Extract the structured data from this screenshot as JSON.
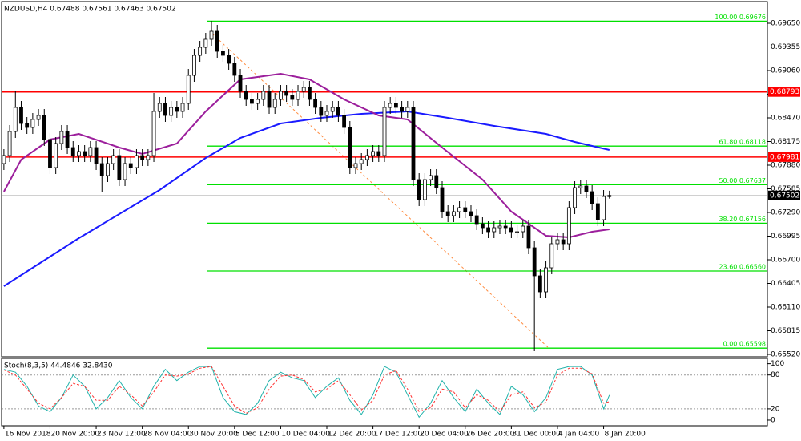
{
  "chart_data": [
    {
      "type": "candlestick",
      "title": "NZDUSD,H4  0.67488 0.67561 0.67463 0.67502",
      "xlim": [
        -0.4,
        132.4
      ],
      "ylim": [
        0.6549,
        0.6991
      ],
      "xticks": [
        {
          "value": 0,
          "label": "16 Nov 2018"
        },
        {
          "value": 8,
          "label": "20 Nov 20:00"
        },
        {
          "value": 16,
          "label": "23 Nov 12:00"
        },
        {
          "value": 24,
          "label": "28 Nov 04:00"
        },
        {
          "value": 32,
          "label": "30 Nov 20:00"
        },
        {
          "value": 40,
          "label": "5 Dec 12:00"
        },
        {
          "value": 48,
          "label": "10 Dec 04:00"
        },
        {
          "value": 56,
          "label": "12 Dec 20:00"
        },
        {
          "value": 64,
          "label": "17 Dec 12:00"
        },
        {
          "value": 72,
          "label": "20 Dec 04:00"
        },
        {
          "value": 80,
          "label": "26 Dec 20:00"
        },
        {
          "value": 88,
          "label": "31 Dec 00:00"
        },
        {
          "value": 96,
          "label": "4 Jan 04:00"
        },
        {
          "value": 104,
          "label": "8 Jan 20:00"
        }
      ],
      "yticks": [
        {
          "value": 0.6965,
          "label": "0.69650"
        },
        {
          "value": 0.69355,
          "label": "0.69355"
        },
        {
          "value": 0.6906,
          "label": "0.69060"
        },
        {
          "value": 0.68765,
          "label": "0.68765"
        },
        {
          "value": 0.6847,
          "label": "0.68470"
        },
        {
          "value": 0.68175,
          "label": "0.68175"
        },
        {
          "value": 0.6788,
          "label": "0.67880"
        },
        {
          "value": 0.67585,
          "label": "0.67585"
        },
        {
          "value": 0.6729,
          "label": "0.67290"
        },
        {
          "value": 0.66995,
          "label": "0.66995"
        },
        {
          "value": 0.667,
          "label": "0.66700"
        },
        {
          "value": 0.66405,
          "label": "0.66405"
        },
        {
          "value": 0.6611,
          "label": "0.66110"
        },
        {
          "value": 0.65815,
          "label": "0.65815"
        },
        {
          "value": 0.6552,
          "label": "0.65520"
        }
      ],
      "grid": false,
      "up_color": "#ffffff",
      "down_color": "#000000",
      "candles": [
        [
          0.679,
          0.6808,
          0.6782,
          0.68
        ],
        [
          0.68,
          0.6838,
          0.6792,
          0.683
        ],
        [
          0.683,
          0.6881,
          0.6822,
          0.686
        ],
        [
          0.686,
          0.6868,
          0.6832,
          0.684
        ],
        [
          0.684,
          0.6848,
          0.6827,
          0.6835
        ],
        [
          0.6835,
          0.6853,
          0.6827,
          0.6845
        ],
        [
          0.6845,
          0.6858,
          0.6837,
          0.685
        ],
        [
          0.685,
          0.6858,
          0.6812,
          0.682
        ],
        [
          0.682,
          0.6828,
          0.6777,
          0.6785
        ],
        [
          0.6785,
          0.6823,
          0.6777,
          0.6815
        ],
        [
          0.6815,
          0.6838,
          0.6807,
          0.683
        ],
        [
          0.683,
          0.6838,
          0.6802,
          0.681
        ],
        [
          0.681,
          0.6818,
          0.6792,
          0.68
        ],
        [
          0.68,
          0.6813,
          0.6792,
          0.6805
        ],
        [
          0.6805,
          0.6813,
          0.6792,
          0.68
        ],
        [
          0.68,
          0.6818,
          0.6792,
          0.681
        ],
        [
          0.681,
          0.6818,
          0.6782,
          0.679
        ],
        [
          0.679,
          0.6798,
          0.6755,
          0.6775
        ],
        [
          0.6775,
          0.6798,
          0.6767,
          0.679
        ],
        [
          0.679,
          0.6808,
          0.6782,
          0.68
        ],
        [
          0.68,
          0.6808,
          0.6762,
          0.677
        ],
        [
          0.677,
          0.6798,
          0.6762,
          0.679
        ],
        [
          0.679,
          0.6798,
          0.6777,
          0.6785
        ],
        [
          0.6785,
          0.6808,
          0.6777,
          0.68
        ],
        [
          0.68,
          0.6808,
          0.6787,
          0.6795
        ],
        [
          0.6795,
          0.6808,
          0.6787,
          0.68
        ],
        [
          0.68,
          0.6878,
          0.6792,
          0.6855
        ],
        [
          0.6855,
          0.6873,
          0.6847,
          0.6865
        ],
        [
          0.6865,
          0.6873,
          0.6842,
          0.685
        ],
        [
          0.685,
          0.6868,
          0.6842,
          0.686
        ],
        [
          0.686,
          0.6868,
          0.6847,
          0.6855
        ],
        [
          0.6855,
          0.6873,
          0.6847,
          0.6865
        ],
        [
          0.6865,
          0.6908,
          0.6857,
          0.69
        ],
        [
          0.69,
          0.6933,
          0.6892,
          0.6925
        ],
        [
          0.6925,
          0.6943,
          0.6917,
          0.6935
        ],
        [
          0.6935,
          0.6953,
          0.6927,
          0.6945
        ],
        [
          0.6945,
          0.6968,
          0.6937,
          0.6955
        ],
        [
          0.6955,
          0.6963,
          0.6922,
          0.693
        ],
        [
          0.693,
          0.6938,
          0.6917,
          0.6925
        ],
        [
          0.6925,
          0.6933,
          0.6907,
          0.6915
        ],
        [
          0.6915,
          0.6923,
          0.6892,
          0.69
        ],
        [
          0.69,
          0.6908,
          0.6872,
          0.688
        ],
        [
          0.688,
          0.6888,
          0.6862,
          0.687
        ],
        [
          0.687,
          0.6878,
          0.6857,
          0.6865
        ],
        [
          0.6865,
          0.6878,
          0.6857,
          0.687
        ],
        [
          0.687,
          0.6888,
          0.6862,
          0.688
        ],
        [
          0.688,
          0.6888,
          0.6852,
          0.686
        ],
        [
          0.686,
          0.6878,
          0.6852,
          0.687
        ],
        [
          0.687,
          0.6888,
          0.6862,
          0.688
        ],
        [
          0.688,
          0.6888,
          0.6867,
          0.6875
        ],
        [
          0.6875,
          0.6883,
          0.6862,
          0.687
        ],
        [
          0.687,
          0.6888,
          0.6862,
          0.688
        ],
        [
          0.688,
          0.6893,
          0.6872,
          0.6885
        ],
        [
          0.6885,
          0.6893,
          0.6862,
          0.687
        ],
        [
          0.687,
          0.6878,
          0.6852,
          0.686
        ],
        [
          0.686,
          0.6868,
          0.6842,
          0.685
        ],
        [
          0.685,
          0.6863,
          0.6842,
          0.6855
        ],
        [
          0.6855,
          0.6868,
          0.6847,
          0.686
        ],
        [
          0.686,
          0.6868,
          0.6842,
          0.685
        ],
        [
          0.685,
          0.6858,
          0.6827,
          0.6835
        ],
        [
          0.6835,
          0.6843,
          0.6777,
          0.6785
        ],
        [
          0.6785,
          0.6798,
          0.6777,
          0.679
        ],
        [
          0.679,
          0.6803,
          0.6782,
          0.6795
        ],
        [
          0.6795,
          0.6808,
          0.6787,
          0.68
        ],
        [
          0.68,
          0.6813,
          0.6792,
          0.6805
        ],
        [
          0.6805,
          0.6813,
          0.6792,
          0.68
        ],
        [
          0.68,
          0.6868,
          0.6792,
          0.686
        ],
        [
          0.686,
          0.6873,
          0.6852,
          0.6865
        ],
        [
          0.6865,
          0.6873,
          0.6852,
          0.686
        ],
        [
          0.686,
          0.6868,
          0.6847,
          0.6855
        ],
        [
          0.6855,
          0.6868,
          0.6847,
          0.686
        ],
        [
          0.686,
          0.6868,
          0.6762,
          0.677
        ],
        [
          0.677,
          0.6778,
          0.6737,
          0.6745
        ],
        [
          0.6745,
          0.6778,
          0.6737,
          0.677
        ],
        [
          0.677,
          0.6783,
          0.6762,
          0.6775
        ],
        [
          0.6775,
          0.6783,
          0.6752,
          0.676
        ],
        [
          0.676,
          0.6768,
          0.6722,
          0.673
        ],
        [
          0.673,
          0.6738,
          0.6717,
          0.6725
        ],
        [
          0.6725,
          0.6738,
          0.6717,
          0.673
        ],
        [
          0.673,
          0.6743,
          0.6722,
          0.6735
        ],
        [
          0.6735,
          0.6743,
          0.6722,
          0.673
        ],
        [
          0.673,
          0.6738,
          0.6717,
          0.6725
        ],
        [
          0.6725,
          0.6733,
          0.6707,
          0.6715
        ],
        [
          0.6715,
          0.6723,
          0.6702,
          0.671
        ],
        [
          0.671,
          0.6718,
          0.6697,
          0.6705
        ],
        [
          0.6705,
          0.6718,
          0.6697,
          0.671
        ],
        [
          0.671,
          0.672,
          0.6702,
          0.6712
        ],
        [
          0.6712,
          0.672,
          0.6702,
          0.671
        ],
        [
          0.671,
          0.6718,
          0.6697,
          0.6705
        ],
        [
          0.6705,
          0.6713,
          0.6697,
          0.6705
        ],
        [
          0.6705,
          0.672,
          0.6697,
          0.6712
        ],
        [
          0.6712,
          0.672,
          0.6677,
          0.6685
        ],
        [
          0.6685,
          0.6693,
          0.6556,
          0.665
        ],
        [
          0.665,
          0.6658,
          0.6622,
          0.663
        ],
        [
          0.663,
          0.6668,
          0.6622,
          0.666
        ],
        [
          0.666,
          0.6698,
          0.6652,
          0.669
        ],
        [
          0.669,
          0.6703,
          0.6682,
          0.6695
        ],
        [
          0.6695,
          0.6703,
          0.6682,
          0.669
        ],
        [
          0.669,
          0.6743,
          0.6682,
          0.6735
        ],
        [
          0.6735,
          0.6768,
          0.6727,
          0.676
        ],
        [
          0.676,
          0.677,
          0.6752,
          0.6762
        ],
        [
          0.6762,
          0.677,
          0.6747,
          0.6755
        ],
        [
          0.6755,
          0.6763,
          0.6732,
          0.674
        ],
        [
          0.674,
          0.6748,
          0.6712,
          0.672
        ],
        [
          0.672,
          0.6757,
          0.6712,
          0.6749
        ],
        [
          0.67488,
          0.67561,
          0.67463,
          0.67502
        ]
      ],
      "series": [
        {
          "color": "#1a1aff",
          "x": [
            0,
            13,
            27,
            35,
            41,
            48,
            55,
            62,
            70,
            77,
            85,
            94,
            99,
            105
          ],
          "values": [
            0.6637,
            0.6697,
            0.6757,
            0.6797,
            0.6822,
            0.684,
            0.6847,
            0.6852,
            0.6855,
            0.6847,
            0.6837,
            0.6827,
            0.6817,
            0.6807
          ]
        },
        {
          "color": "#9c1f9c",
          "x": [
            0,
            3,
            8,
            13,
            20,
            24,
            30,
            35,
            41,
            48,
            53,
            59,
            65,
            70,
            76,
            83,
            88,
            94,
            98,
            102,
            105
          ],
          "values": [
            0.6755,
            0.6795,
            0.682,
            0.6827,
            0.681,
            0.6802,
            0.6815,
            0.6855,
            0.6895,
            0.6902,
            0.6895,
            0.687,
            0.685,
            0.6845,
            0.681,
            0.677,
            0.673,
            0.67,
            0.6698,
            0.6705,
            0.6708
          ]
        }
      ],
      "fib_color": "#00e000",
      "fib_levels": [
        {
          "value": 0.69676,
          "label": "100.00 0.69676"
        },
        {
          "value": 0.68118,
          "label": "61.80 0.68118"
        },
        {
          "value": 0.67637,
          "label": "50.00 0.67637"
        },
        {
          "value": 0.67156,
          "label": "38.20 0.67156"
        },
        {
          "value": 0.6656,
          "label": "23.60 0.66560"
        },
        {
          "value": 0.65598,
          "label": "0.00 0.65598"
        }
      ],
      "hlines": [
        {
          "value": 0.68793,
          "color": "#ff0000"
        },
        {
          "value": 0.67981,
          "color": "#ff0000"
        }
      ],
      "current_price": 0.67502
    },
    {
      "type": "line",
      "title": "Stoch(8,3,5) 44.4846 32.8430",
      "xlim": [
        -0.4,
        132.4
      ],
      "ylim": [
        -10,
        108
      ],
      "yticks": [
        100,
        80,
        20,
        0
      ],
      "levels": [
        80,
        20
      ],
      "grid": false,
      "series": [
        {
          "color": "#20b2aa",
          "x": [
            0,
            2,
            4,
            6,
            8,
            10,
            12,
            14,
            16,
            18,
            20,
            22,
            24,
            26,
            28,
            30,
            32,
            34,
            36,
            38,
            40,
            42,
            44,
            46,
            48,
            50,
            52,
            54,
            56,
            58,
            60,
            62,
            64,
            66,
            68,
            70,
            72,
            74,
            76,
            78,
            80,
            82,
            84,
            86,
            88,
            90,
            92,
            94,
            96,
            98,
            100,
            102,
            104,
            105
          ],
          "values": [
            90,
            85,
            60,
            25,
            15,
            40,
            80,
            60,
            20,
            40,
            70,
            40,
            20,
            60,
            90,
            70,
            85,
            95,
            95,
            40,
            15,
            10,
            30,
            70,
            85,
            75,
            70,
            40,
            60,
            75,
            35,
            10,
            45,
            95,
            85,
            45,
            5,
            30,
            70,
            40,
            15,
            55,
            30,
            10,
            60,
            45,
            15,
            40,
            90,
            95,
            95,
            80,
            20,
            44.5
          ]
        },
        {
          "color": "#ff3030",
          "dashed": true,
          "x": [
            0,
            2,
            4,
            6,
            8,
            10,
            12,
            14,
            16,
            18,
            20,
            22,
            24,
            26,
            28,
            30,
            32,
            34,
            36,
            38,
            40,
            42,
            44,
            46,
            48,
            50,
            52,
            54,
            56,
            58,
            60,
            62,
            64,
            66,
            68,
            70,
            72,
            74,
            76,
            78,
            80,
            82,
            84,
            86,
            88,
            90,
            92,
            94,
            96,
            98,
            100,
            102,
            104,
            105
          ],
          "values": [
            89,
            80,
            55,
            30,
            20,
            40,
            65,
            60,
            35,
            35,
            60,
            45,
            25,
            50,
            80,
            78,
            82,
            92,
            95,
            60,
            25,
            12,
            22,
            55,
            78,
            80,
            72,
            50,
            55,
            70,
            45,
            18,
            35,
            80,
            88,
            55,
            15,
            22,
            55,
            50,
            22,
            45,
            35,
            15,
            45,
            50,
            22,
            32,
            80,
            92,
            92,
            82,
            30,
            32.8
          ]
        }
      ]
    }
  ]
}
